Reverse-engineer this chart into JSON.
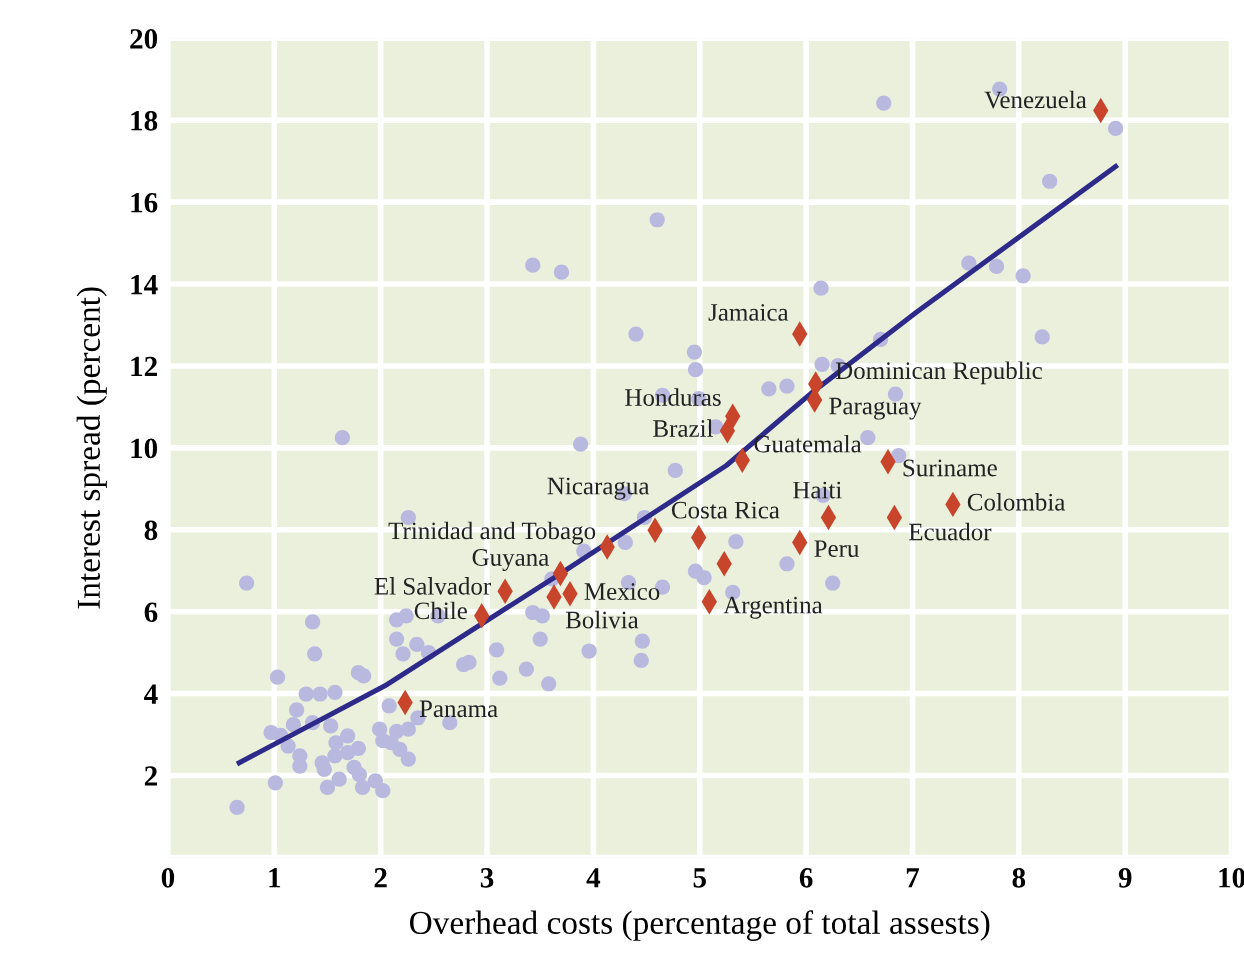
{
  "chart_data": {
    "type": "scatter",
    "xlabel": "Overhead costs (percentage of total assests)",
    "ylabel": "Interest spread (percent)",
    "xlim": [
      0,
      10
    ],
    "ylim": [
      0,
      20
    ],
    "xticks": [
      0,
      1,
      2,
      3,
      4,
      5,
      6,
      7,
      8,
      9,
      10
    ],
    "yticks": [
      {
        "value": 0,
        "label": null
      },
      2,
      4,
      6,
      8,
      10,
      12,
      14,
      16,
      18,
      20
    ],
    "grid": true,
    "series": [
      {
        "marker": "circle",
        "color": "#b9b9e0",
        "x": [
          4.6,
          3.43,
          3.7,
          4.4,
          4.95,
          4.96,
          4.65,
          4.99,
          1.64,
          3.88,
          5.15,
          6.73,
          7.82,
          8.91,
          8.29,
          7.53,
          7.79,
          8.04,
          6.14,
          8.22,
          6.7,
          6.15,
          6.3,
          5.65,
          5.82,
          6.84,
          6.58,
          6.87,
          4.77,
          4.29,
          4.48,
          2.26,
          4.3,
          3.91,
          3.61,
          4.33,
          4.65,
          4.96,
          5.04,
          0.74,
          1.36,
          1.38,
          1.03,
          2.15,
          2.24,
          2.15,
          2.21,
          2.34,
          2.45,
          2.54,
          2.78,
          2.83,
          3.09,
          3.12,
          3.37,
          3.43,
          3.52,
          3.5,
          3.58,
          3.96,
          4.46,
          4.45,
          1.79,
          1.84,
          1.3,
          1.43,
          1.57,
          1.21,
          1.18,
          0.97,
          1.06,
          1.13,
          1.24,
          1.24,
          1.01,
          0.65,
          1.36,
          1.53,
          1.58,
          1.69,
          1.69,
          1.79,
          1.45,
          1.47,
          1.57,
          1.75,
          1.8,
          1.61,
          1.5,
          1.83,
          1.95,
          2.02,
          1.99,
          2.02,
          2.1,
          2.18,
          2.26,
          2.15,
          2.26,
          2.35,
          2.08,
          2.65,
          6.16,
          5.34,
          5.82,
          5.31,
          6.25
        ],
        "values": [
          15.57,
          14.46,
          14.29,
          12.78,
          12.34,
          11.91,
          11.28,
          11.2,
          10.25,
          10.09,
          10.51,
          18.42,
          18.76,
          17.8,
          16.51,
          14.51,
          14.43,
          14.2,
          13.9,
          12.71,
          12.65,
          12.04,
          12.01,
          11.44,
          11.51,
          11.31,
          10.25,
          9.81,
          9.45,
          8.88,
          8.3,
          8.3,
          7.69,
          7.48,
          6.8,
          6.71,
          6.6,
          6.99,
          6.83,
          6.7,
          5.75,
          4.97,
          4.4,
          5.8,
          5.9,
          5.33,
          4.97,
          5.2,
          5.0,
          5.9,
          4.71,
          4.76,
          5.07,
          4.38,
          4.6,
          5.98,
          5.9,
          5.33,
          4.24,
          5.04,
          5.28,
          4.81,
          4.51,
          4.43,
          3.99,
          3.99,
          4.03,
          3.6,
          3.24,
          3.05,
          2.98,
          2.72,
          2.48,
          2.23,
          1.82,
          1.22,
          3.29,
          3.21,
          2.8,
          2.97,
          2.56,
          2.66,
          2.31,
          2.15,
          2.48,
          2.2,
          2.02,
          1.91,
          1.71,
          1.71,
          1.87,
          1.63,
          3.13,
          2.85,
          2.8,
          2.64,
          2.4,
          3.08,
          3.13,
          3.41,
          3.7,
          3.29,
          8.84,
          7.71,
          7.17,
          6.47,
          6.7
        ]
      },
      {
        "marker": "diamond",
        "color": "#c8442a",
        "x": [
          8.77,
          5.94,
          6.09,
          6.08,
          5.31,
          5.26,
          5.4,
          6.77,
          7.38,
          6.21,
          6.83,
          4.99,
          5.94,
          5.09,
          4.58,
          4.13,
          3.69,
          3.17,
          3.78,
          3.63,
          2.95,
          2.23,
          5.23
        ],
        "values": [
          18.24,
          12.78,
          11.56,
          11.17,
          10.77,
          10.42,
          9.7,
          9.66,
          8.62,
          8.3,
          8.3,
          7.81,
          7.69,
          6.24,
          7.99,
          7.58,
          6.93,
          6.5,
          6.44,
          6.36,
          5.9,
          3.78,
          7.17
        ]
      },
      {
        "type": "line",
        "marker": "none",
        "line_style": "solid",
        "color": "#2e2a8a",
        "x": [
          0.67,
          2.04,
          3.69,
          5.25,
          6.06,
          7.04,
          8.91
        ],
        "values": [
          2.31,
          4.19,
          6.93,
          9.57,
          11.36,
          13.32,
          16.87
        ]
      }
    ],
    "annotations": [
      {
        "text": "Venezuela",
        "x": 8.77,
        "y": 18.24
      },
      {
        "text": "Jamaica",
        "x": 5.94,
        "y": 12.78
      },
      {
        "text": "Dominican Republic",
        "x": 6.09,
        "y": 11.56
      },
      {
        "text": "Paraguay",
        "x": 6.08,
        "y": 11.17
      },
      {
        "text": "Honduras",
        "x": 5.31,
        "y": 10.77
      },
      {
        "text": "Brazil",
        "x": 5.26,
        "y": 10.42
      },
      {
        "text": "Guatemala",
        "x": 5.4,
        "y": 9.7
      },
      {
        "text": "Suriname",
        "x": 6.77,
        "y": 9.66
      },
      {
        "text": "Colombia",
        "x": 7.38,
        "y": 8.62
      },
      {
        "text": "Haiti",
        "x": 6.21,
        "y": 8.3
      },
      {
        "text": "Ecuador",
        "x": 6.83,
        "y": 8.3
      },
      {
        "text": "Costa Rica",
        "x": 4.99,
        "y": 7.81
      },
      {
        "text": "Peru",
        "x": 5.94,
        "y": 7.69
      },
      {
        "text": "Argentina",
        "x": 5.09,
        "y": 6.24
      },
      {
        "text": "Nicaragua",
        "x": 4.58,
        "y": 7.99
      },
      {
        "text": "Trinidad and Tobago",
        "x": 4.13,
        "y": 7.58
      },
      {
        "text": "Guyana",
        "x": 3.69,
        "y": 6.93
      },
      {
        "text": "El Salvador",
        "x": 3.17,
        "y": 6.5
      },
      {
        "text": "Mexico",
        "x": 3.78,
        "y": 6.44
      },
      {
        "text": "Bolivia",
        "x": 3.63,
        "y": 6.36
      },
      {
        "text": "Chile",
        "x": 2.95,
        "y": 5.9
      },
      {
        "text": "Panama",
        "x": 2.23,
        "y": 3.78
      }
    ]
  }
}
